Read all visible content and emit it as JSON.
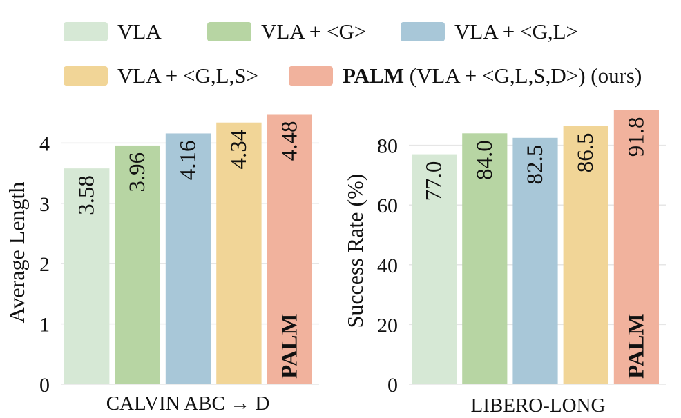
{
  "legend": {
    "items": [
      {
        "label": "VLA",
        "color": "#d6e8d5"
      },
      {
        "label": "VLA + <G>",
        "color": "#b7d5a3"
      },
      {
        "label": "VLA + <G,L>",
        "color": "#a8c7d8"
      },
      {
        "label": "VLA + <G,L,S>",
        "color": "#f1d597"
      },
      {
        "label_bold": "PALM",
        "label_rest": " (VLA + <G,L,S,D>) (ours)",
        "color": "#f1b29d"
      }
    ]
  },
  "chart_data": [
    {
      "type": "bar",
      "xlabel": "CALVIN ABC → D",
      "ylabel": "Average Length",
      "ylim": [
        0,
        4.6
      ],
      "yticks": [
        0,
        1,
        2,
        3,
        4
      ],
      "grid": true,
      "series": [
        {
          "name": "VLA",
          "value": 3.58,
          "label": "3.58"
        },
        {
          "name": "VLA + <G>",
          "value": 3.96,
          "label": "3.96"
        },
        {
          "name": "VLA + <G,L>",
          "value": 4.16,
          "label": "4.16"
        },
        {
          "name": "VLA + <G,L,S>",
          "value": 4.34,
          "label": "4.34"
        },
        {
          "name": "PALM (VLA + <G,L,S,D>) (ours)",
          "value": 4.48,
          "label": "4.48"
        }
      ],
      "bar_annotation": "PALM"
    },
    {
      "type": "bar",
      "xlabel": "LIBERO-LONG",
      "ylabel": "Success Rate (%)",
      "ylim": [
        0,
        94
      ],
      "yticks": [
        0,
        20,
        40,
        60,
        80
      ],
      "grid": true,
      "series": [
        {
          "name": "VLA",
          "value": 77.0,
          "label": "77.0"
        },
        {
          "name": "VLA + <G>",
          "value": 84.0,
          "label": "84.0"
        },
        {
          "name": "VLA + <G,L>",
          "value": 82.5,
          "label": "82.5"
        },
        {
          "name": "VLA + <G,L,S>",
          "value": 86.5,
          "label": "86.5"
        },
        {
          "name": "PALM (VLA + <G,L,S,D>) (ours)",
          "value": 91.8,
          "label": "91.8"
        }
      ],
      "bar_annotation": "PALM"
    }
  ]
}
